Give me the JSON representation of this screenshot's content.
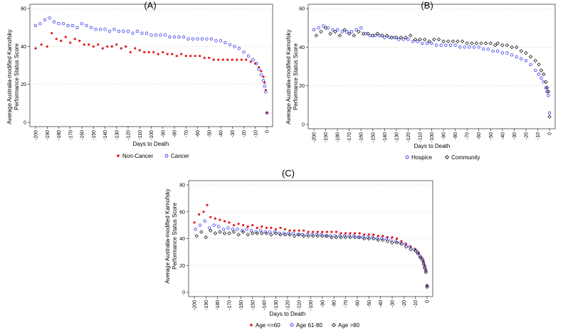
{
  "chart_data": [
    {
      "type": "scatter",
      "panel": "A",
      "title": "(A)",
      "xlabel": "Days to Death",
      "ylabel_lines": [
        "Average Australia-modified Karnofsky",
        "Performance Status Score"
      ],
      "xlim": [
        -200,
        0
      ],
      "ylim": [
        0,
        60
      ],
      "xticks": [
        -200,
        -190,
        -180,
        -170,
        -160,
        -150,
        -140,
        -130,
        -120,
        -110,
        -100,
        -90,
        -80,
        -70,
        -60,
        -50,
        -40,
        -30,
        -20,
        -10,
        0
      ],
      "yticks": [
        0,
        20,
        40,
        60
      ],
      "grid": true,
      "legend": "bottom",
      "series": [
        {
          "name": "Non-Cancer",
          "color": "#e41a1c",
          "marker": "dot",
          "x": [
            -200,
            -195,
            -190,
            -186,
            -182,
            -178,
            -174,
            -170,
            -166,
            -162,
            -158,
            -154,
            -150,
            -146,
            -142,
            -138,
            -134,
            -130,
            -126,
            -122,
            -118,
            -114,
            -110,
            -106,
            -102,
            -98,
            -94,
            -90,
            -86,
            -82,
            -78,
            -74,
            -70,
            -66,
            -62,
            -58,
            -54,
            -50,
            -46,
            -42,
            -38,
            -34,
            -30,
            -26,
            -22,
            -18,
            -14,
            -10,
            -7,
            -5,
            -3,
            -2,
            -1,
            0
          ],
          "y": [
            39,
            41,
            40,
            47,
            44,
            43,
            45,
            42,
            44,
            43,
            41,
            41,
            40,
            41,
            39,
            40,
            40,
            41,
            39,
            40,
            37,
            39,
            38,
            37,
            37,
            37,
            36,
            37,
            36,
            36,
            35,
            36,
            35,
            35,
            35,
            35,
            34,
            34,
            33,
            33,
            33,
            33,
            33,
            33,
            33,
            33,
            32,
            31,
            29,
            27,
            24,
            21,
            17,
            5
          ]
        },
        {
          "name": "Cancer",
          "color": "#3a3af0",
          "marker": "circle",
          "x": [
            -200,
            -196,
            -192,
            -188,
            -184,
            -180,
            -176,
            -172,
            -168,
            -164,
            -160,
            -156,
            -152,
            -148,
            -144,
            -140,
            -136,
            -132,
            -128,
            -124,
            -120,
            -116,
            -112,
            -108,
            -104,
            -100,
            -96,
            -92,
            -88,
            -84,
            -80,
            -76,
            -72,
            -68,
            -64,
            -60,
            -56,
            -52,
            -48,
            -44,
            -40,
            -36,
            -32,
            -28,
            -24,
            -20,
            -16,
            -12,
            -9,
            -7,
            -5,
            -3,
            -2,
            -1,
            0
          ],
          "y": [
            51,
            52,
            54,
            55,
            53,
            52,
            52,
            51,
            51,
            50,
            52,
            51,
            50,
            49,
            49,
            49,
            48,
            49,
            48,
            48,
            48,
            47,
            48,
            47,
            47,
            46,
            46,
            46,
            46,
            45,
            45,
            45,
            45,
            44,
            44,
            44,
            44,
            44,
            44,
            43,
            43,
            42,
            41,
            40,
            39,
            37,
            35,
            33,
            31,
            28,
            25,
            22,
            19,
            16,
            5
          ]
        }
      ]
    },
    {
      "type": "scatter",
      "panel": "B",
      "title": "(B)",
      "xlabel": "Days to Death",
      "ylabel_lines": [
        "Average Australia-modified Karnofsky",
        "Performance Status Score"
      ],
      "xlim": [
        -200,
        0
      ],
      "ylim": [
        0,
        60
      ],
      "xticks": [
        -200,
        -190,
        -180,
        -170,
        -160,
        -150,
        -140,
        -130,
        -120,
        -110,
        -100,
        -90,
        -80,
        -70,
        -60,
        -50,
        -40,
        -30,
        -20,
        -10,
        0
      ],
      "yticks": [
        0,
        20,
        40,
        60
      ],
      "grid": true,
      "legend": "bottom",
      "series": [
        {
          "name": "Hospice",
          "color": "#3a3af0",
          "marker": "circle",
          "x": [
            -200,
            -196,
            -192,
            -188,
            -184,
            -180,
            -176,
            -172,
            -168,
            -164,
            -160,
            -156,
            -152,
            -148,
            -144,
            -140,
            -136,
            -132,
            -128,
            -124,
            -120,
            -116,
            -112,
            -108,
            -104,
            -100,
            -96,
            -92,
            -88,
            -84,
            -80,
            -76,
            -72,
            -68,
            -64,
            -60,
            -56,
            -52,
            -48,
            -44,
            -40,
            -36,
            -32,
            -28,
            -24,
            -20,
            -16,
            -12,
            -9,
            -7,
            -5,
            -3,
            -2,
            -1,
            0
          ],
          "y": [
            49,
            50,
            51,
            50,
            49,
            49,
            48,
            48,
            48,
            49,
            50,
            47,
            46,
            46,
            46,
            45,
            45,
            45,
            44,
            44,
            44,
            43,
            43,
            42,
            42,
            42,
            41,
            41,
            41,
            41,
            41,
            40,
            40,
            40,
            40,
            40,
            39,
            39,
            38,
            38,
            37,
            37,
            36,
            35,
            34,
            33,
            31,
            28,
            26,
            24,
            22,
            19,
            17,
            15,
            6
          ]
        },
        {
          "name": "Community",
          "color": "#222222",
          "marker": "diamond",
          "x": [
            -198,
            -194,
            -190,
            -186,
            -182,
            -178,
            -174,
            -170,
            -166,
            -162,
            -158,
            -154,
            -150,
            -146,
            -142,
            -138,
            -134,
            -130,
            -126,
            -122,
            -118,
            -114,
            -110,
            -106,
            -102,
            -98,
            -94,
            -90,
            -86,
            -82,
            -78,
            -74,
            -70,
            -66,
            -62,
            -58,
            -54,
            -50,
            -46,
            -44,
            -40,
            -36,
            -32,
            -28,
            -24,
            -20,
            -16,
            -12,
            -9,
            -7,
            -5,
            -3,
            -2,
            -1,
            0
          ],
          "y": [
            46,
            48,
            50,
            47,
            48,
            46,
            49,
            47,
            46,
            48,
            47,
            47,
            46,
            47,
            46,
            46,
            45,
            45,
            45,
            45,
            46,
            44,
            44,
            44,
            43,
            44,
            44,
            43,
            43,
            43,
            43,
            43,
            42,
            42,
            42,
            42,
            42,
            42,
            41,
            42,
            41,
            41,
            40,
            40,
            38,
            37,
            35,
            33,
            31,
            28,
            26,
            22,
            19,
            17,
            4
          ]
        }
      ]
    },
    {
      "type": "scatter",
      "panel": "C",
      "title": "(C)",
      "xlabel": "Days to Death",
      "ylabel_lines": [
        "Average Australia-modified Karnofsky",
        "Performance Status Score"
      ],
      "xlim": [
        -200,
        0
      ],
      "ylim": [
        0,
        80
      ],
      "xticks": [
        -200,
        -190,
        -180,
        -170,
        -160,
        -150,
        -140,
        -130,
        -120,
        -110,
        -100,
        -90,
        -80,
        -70,
        -60,
        -50,
        -40,
        -30,
        -20,
        -10,
        0
      ],
      "yticks": [
        0,
        20,
        40,
        60,
        80
      ],
      "grid": true,
      "legend": "bottom",
      "series": [
        {
          "name": "Age <=60",
          "color": "#e41a1c",
          "marker": "dot",
          "x": [
            -200,
            -196,
            -192,
            -189,
            -186,
            -182,
            -178,
            -174,
            -170,
            -166,
            -162,
            -158,
            -154,
            -150,
            -146,
            -142,
            -138,
            -134,
            -130,
            -126,
            -122,
            -118,
            -114,
            -110,
            -106,
            -102,
            -98,
            -94,
            -90,
            -86,
            -82,
            -78,
            -74,
            -70,
            -66,
            -62,
            -58,
            -54,
            -50,
            -46,
            -42,
            -38,
            -34,
            -30,
            -26,
            -22,
            -18,
            -14,
            -10,
            -7,
            -5,
            -3,
            -2,
            -1,
            0
          ],
          "y": [
            52,
            58,
            60,
            65,
            56,
            55,
            54,
            53,
            52,
            50,
            51,
            50,
            49,
            50,
            48,
            49,
            48,
            48,
            47,
            48,
            47,
            46,
            46,
            46,
            46,
            45,
            45,
            45,
            45,
            45,
            45,
            45,
            44,
            44,
            44,
            44,
            44,
            43,
            43,
            43,
            42,
            42,
            41,
            41,
            40,
            38,
            36,
            34,
            32,
            29,
            26,
            23,
            20,
            17,
            5
          ]
        },
        {
          "name": "Age 61-80",
          "color": "#3a3af0",
          "marker": "circle",
          "x": [
            -199,
            -195,
            -191,
            -187,
            -183,
            -179,
            -175,
            -171,
            -167,
            -163,
            -159,
            -155,
            -151,
            -147,
            -143,
            -139,
            -135,
            -131,
            -127,
            -123,
            -119,
            -115,
            -111,
            -107,
            -103,
            -99,
            -95,
            -91,
            -87,
            -83,
            -79,
            -75,
            -71,
            -67,
            -63,
            -59,
            -55,
            -51,
            -47,
            -43,
            -39,
            -35,
            -31,
            -27,
            -23,
            -19,
            -15,
            -11,
            -8,
            -6,
            -4,
            -3,
            -2,
            -1,
            0
          ],
          "y": [
            47,
            50,
            53,
            48,
            50,
            49,
            47,
            48,
            47,
            47,
            46,
            47,
            46,
            45,
            46,
            45,
            45,
            45,
            44,
            44,
            44,
            44,
            43,
            43,
            43,
            43,
            43,
            43,
            42,
            42,
            42,
            42,
            42,
            42,
            42,
            41,
            41,
            41,
            41,
            40,
            40,
            40,
            39,
            38,
            37,
            36,
            34,
            32,
            30,
            27,
            25,
            22,
            19,
            16,
            5
          ]
        },
        {
          "name": "Age >80",
          "color": "#222222",
          "marker": "diamond",
          "x": [
            -198,
            -194,
            -190,
            -186,
            -182,
            -178,
            -174,
            -170,
            -166,
            -162,
            -158,
            -154,
            -150,
            -146,
            -142,
            -138,
            -134,
            -130,
            -126,
            -122,
            -118,
            -114,
            -110,
            -106,
            -102,
            -98,
            -94,
            -90,
            -86,
            -82,
            -78,
            -74,
            -70,
            -66,
            -62,
            -58,
            -54,
            -50,
            -46,
            -42,
            -38,
            -34,
            -30,
            -26,
            -22,
            -18,
            -14,
            -10,
            -8,
            -6,
            -4,
            -3,
            -2,
            -1,
            0
          ],
          "y": [
            42,
            45,
            41,
            46,
            44,
            45,
            44,
            44,
            45,
            43,
            45,
            43,
            44,
            44,
            44,
            44,
            43,
            44,
            43,
            43,
            43,
            42,
            43,
            42,
            42,
            42,
            42,
            42,
            42,
            41,
            41,
            41,
            41,
            41,
            41,
            41,
            40,
            40,
            40,
            39,
            39,
            38,
            37,
            37,
            36,
            34,
            32,
            31,
            29,
            26,
            24,
            21,
            18,
            15,
            4
          ]
        }
      ]
    }
  ]
}
